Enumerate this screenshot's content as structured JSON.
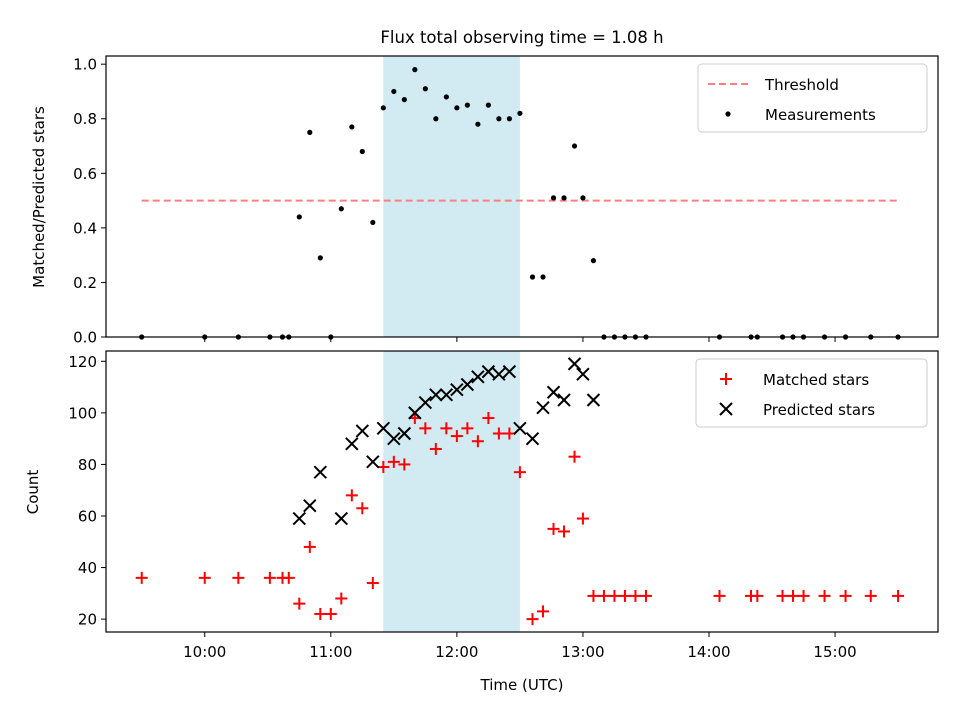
{
  "chart_data": [
    {
      "type": "scatter",
      "title": "Flux total observing time = 1.08 h",
      "xlabel": "",
      "ylabel": "Matched/Predicted stars",
      "xlim": [
        "09:13",
        "15:49"
      ],
      "ylim": [
        0,
        1.03
      ],
      "yticks": [
        0.0,
        0.2,
        0.4,
        0.6,
        0.8,
        1.0
      ],
      "ytick_labels": [
        "0.0",
        "0.2",
        "0.4",
        "0.6",
        "0.8",
        "1.0"
      ],
      "highlight_span": [
        "11:25",
        "12:30"
      ],
      "highlight_color": "#add8e6",
      "legend_position": "upper right",
      "threshold": {
        "name": "Threshold",
        "value": 0.5,
        "x_range": [
          "09:30",
          "15:30"
        ],
        "color": "#ff7f7f",
        "style": "dashed"
      },
      "series": [
        {
          "name": "Measurements",
          "marker": "dot",
          "color": "#000000",
          "points": [
            [
              "09:30",
              0.0
            ],
            [
              "10:00",
              0.0
            ],
            [
              "10:16",
              0.0
            ],
            [
              "10:31",
              0.0
            ],
            [
              "10:37",
              0.0
            ],
            [
              "10:40",
              0.0
            ],
            [
              "10:45",
              0.44
            ],
            [
              "10:50",
              0.75
            ],
            [
              "10:55",
              0.29
            ],
            [
              "11:00",
              0.0
            ],
            [
              "11:05",
              0.47
            ],
            [
              "11:10",
              0.77
            ],
            [
              "11:15",
              0.68
            ],
            [
              "11:20",
              0.42
            ],
            [
              "11:25",
              0.84
            ],
            [
              "11:30",
              0.9
            ],
            [
              "11:35",
              0.87
            ],
            [
              "11:40",
              0.98
            ],
            [
              "11:45",
              0.91
            ],
            [
              "11:50",
              0.8
            ],
            [
              "11:55",
              0.88
            ],
            [
              "12:00",
              0.84
            ],
            [
              "12:05",
              0.85
            ],
            [
              "12:10",
              0.78
            ],
            [
              "12:15",
              0.85
            ],
            [
              "12:20",
              0.8
            ],
            [
              "12:25",
              0.8
            ],
            [
              "12:30",
              0.82
            ],
            [
              "12:36",
              0.22
            ],
            [
              "12:41",
              0.22
            ],
            [
              "12:46",
              0.51
            ],
            [
              "12:51",
              0.51
            ],
            [
              "12:56",
              0.7
            ],
            [
              "13:00",
              0.51
            ],
            [
              "13:05",
              0.28
            ],
            [
              "13:10",
              0.0
            ],
            [
              "13:15",
              0.0
            ],
            [
              "13:20",
              0.0
            ],
            [
              "13:25",
              0.0
            ],
            [
              "13:30",
              0.0
            ],
            [
              "14:05",
              0.0
            ],
            [
              "14:20",
              0.0
            ],
            [
              "14:23",
              0.0
            ],
            [
              "14:35",
              0.0
            ],
            [
              "14:40",
              0.0
            ],
            [
              "14:45",
              0.0
            ],
            [
              "14:55",
              0.0
            ],
            [
              "15:05",
              0.0
            ],
            [
              "15:17",
              0.0
            ],
            [
              "15:30",
              0.0
            ]
          ]
        }
      ]
    },
    {
      "type": "scatter",
      "title": "",
      "xlabel": "Time (UTC)",
      "ylabel": "Count",
      "xlim": [
        "09:13",
        "15:49"
      ],
      "ylim": [
        15,
        124
      ],
      "yticks": [
        20,
        40,
        60,
        80,
        100,
        120
      ],
      "xticks": [
        "10:00",
        "11:00",
        "12:00",
        "13:00",
        "14:00",
        "15:00"
      ],
      "highlight_span": [
        "11:25",
        "12:30"
      ],
      "highlight_color": "#add8e6",
      "legend_position": "upper right",
      "series": [
        {
          "name": "Matched stars",
          "marker": "plus",
          "color": "#ff0000",
          "points": [
            [
              "09:30",
              36
            ],
            [
              "10:00",
              36
            ],
            [
              "10:16",
              36
            ],
            [
              "10:31",
              36
            ],
            [
              "10:37",
              36
            ],
            [
              "10:40",
              36
            ],
            [
              "10:45",
              26
            ],
            [
              "10:50",
              48
            ],
            [
              "10:55",
              22
            ],
            [
              "11:00",
              22
            ],
            [
              "11:05",
              28
            ],
            [
              "11:10",
              68
            ],
            [
              "11:15",
              63
            ],
            [
              "11:20",
              34
            ],
            [
              "11:25",
              79
            ],
            [
              "11:30",
              81
            ],
            [
              "11:35",
              80
            ],
            [
              "11:40",
              98
            ],
            [
              "11:45",
              94
            ],
            [
              "11:50",
              86
            ],
            [
              "11:55",
              94
            ],
            [
              "12:00",
              91
            ],
            [
              "12:05",
              94
            ],
            [
              "12:10",
              89
            ],
            [
              "12:15",
              98
            ],
            [
              "12:20",
              92
            ],
            [
              "12:25",
              92
            ],
            [
              "12:30",
              77
            ],
            [
              "12:36",
              20
            ],
            [
              "12:41",
              23
            ],
            [
              "12:46",
              55
            ],
            [
              "12:51",
              54
            ],
            [
              "12:56",
              83
            ],
            [
              "13:00",
              59
            ],
            [
              "13:05",
              29
            ],
            [
              "13:10",
              29
            ],
            [
              "13:15",
              29
            ],
            [
              "13:20",
              29
            ],
            [
              "13:25",
              29
            ],
            [
              "13:30",
              29
            ],
            [
              "14:05",
              29
            ],
            [
              "14:20",
              29
            ],
            [
              "14:23",
              29
            ],
            [
              "14:35",
              29
            ],
            [
              "14:40",
              29
            ],
            [
              "14:45",
              29
            ],
            [
              "14:55",
              29
            ],
            [
              "15:05",
              29
            ],
            [
              "15:17",
              29
            ],
            [
              "15:30",
              29
            ]
          ]
        },
        {
          "name": "Predicted stars",
          "marker": "x",
          "color": "#000000",
          "points": [
            [
              "10:45",
              59
            ],
            [
              "10:50",
              64
            ],
            [
              "10:55",
              77
            ],
            [
              "11:05",
              59
            ],
            [
              "11:10",
              88
            ],
            [
              "11:15",
              93
            ],
            [
              "11:20",
              81
            ],
            [
              "11:25",
              94
            ],
            [
              "11:30",
              90
            ],
            [
              "11:35",
              92
            ],
            [
              "11:40",
              100
            ],
            [
              "11:45",
              104
            ],
            [
              "11:50",
              107
            ],
            [
              "11:55",
              107
            ],
            [
              "12:00",
              109
            ],
            [
              "12:05",
              111
            ],
            [
              "12:10",
              114
            ],
            [
              "12:15",
              116
            ],
            [
              "12:20",
              115
            ],
            [
              "12:25",
              116
            ],
            [
              "12:30",
              94
            ],
            [
              "12:36",
              90
            ],
            [
              "12:41",
              102
            ],
            [
              "12:46",
              108
            ],
            [
              "12:51",
              105
            ],
            [
              "12:56",
              119
            ],
            [
              "13:00",
              115
            ],
            [
              "13:05",
              105
            ]
          ]
        }
      ]
    }
  ]
}
